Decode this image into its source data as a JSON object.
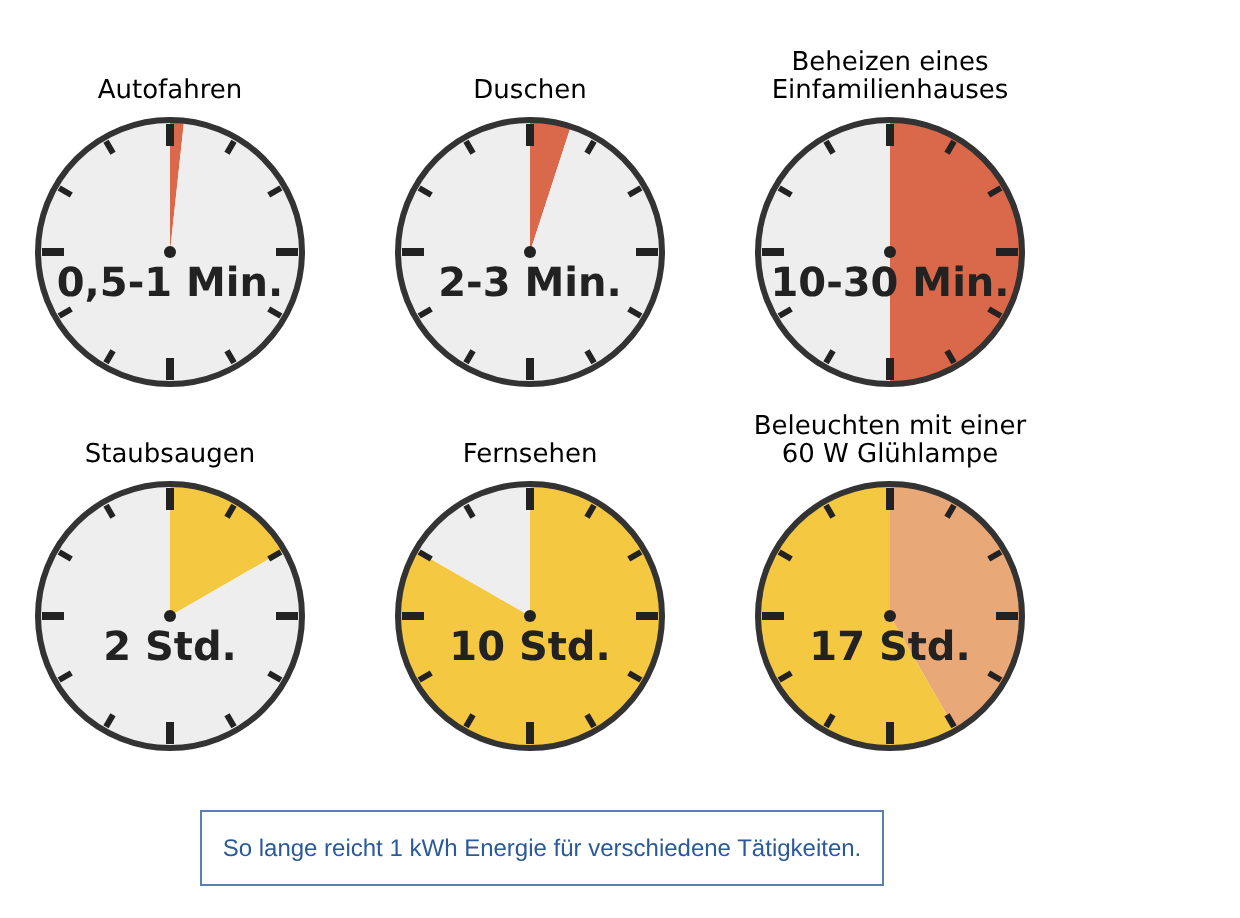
{
  "chart_data": [
    {
      "type": "pie",
      "title": "Autofahren",
      "categories": [
        null,
        null
      ],
      "values": [
        1.7,
        98.3
      ],
      "colors": [
        "#d9694a",
        "#eeeeee"
      ],
      "annotations": [
        "0,5-1 Min."
      ]
    },
    {
      "type": "pie",
      "title": "Duschen",
      "categories": [
        null,
        null
      ],
      "values": [
        5,
        95
      ],
      "colors": [
        "#d9694a",
        "#eeeeee"
      ],
      "annotations": [
        "2-3 Min."
      ]
    },
    {
      "type": "pie",
      "title": "Beheizen eines\nEinfamilienhauses",
      "categories": [
        null,
        null
      ],
      "values": [
        50,
        50
      ],
      "colors": [
        "#d9694a",
        "#eeeeee"
      ],
      "annotations": [
        "10-30 Min."
      ]
    },
    {
      "type": "pie",
      "title": "Staubsaugen",
      "categories": [
        null,
        null
      ],
      "values": [
        16.7,
        83.3
      ],
      "colors": [
        "#f5c842",
        "#eeeeee"
      ],
      "annotations": [
        "2 Std."
      ]
    },
    {
      "type": "pie",
      "title": "Fernsehen",
      "categories": [
        null,
        null
      ],
      "values": [
        83.3,
        16.7
      ],
      "colors": [
        "#f5c842",
        "#eeeeee"
      ],
      "annotations": [
        "10 Std."
      ]
    },
    {
      "type": "pie",
      "title": "Beleuchten mit einer\n60 W Glühlampe",
      "categories": [
        null,
        null
      ],
      "values": [
        41.7,
        58.3
      ],
      "colors": [
        "#e8a878",
        "#f5c842"
      ],
      "annotations": [
        "17 Std."
      ]
    },
    {
      "type": "other",
      "annotations": [
        "So lange reicht 1 kWh Energie für verschiedene Tätigkeiten."
      ]
    }
  ]
}
